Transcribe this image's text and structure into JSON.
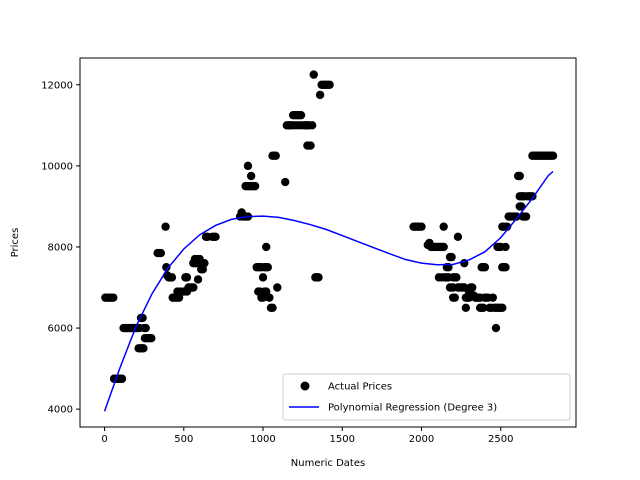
{
  "chart_data": {
    "type": "scatter",
    "title": "",
    "xlabel": "Numeric Dates",
    "ylabel": "Prices",
    "xlim": [
      -155,
      2975
    ],
    "ylim": [
      3560,
      12660
    ],
    "xticks": [
      0,
      500,
      1000,
      1500,
      2000,
      2500
    ],
    "yticks": [
      4000,
      6000,
      8000,
      10000,
      12000
    ],
    "grid": false,
    "legend_placement": "lower-right",
    "legend": [
      {
        "label": "Actual Prices",
        "marker": "circle",
        "color": "#000000"
      },
      {
        "label": "Polynomial Regression (Degree 3)",
        "marker": "line",
        "color": "#0000ff"
      }
    ],
    "series": [
      {
        "name": "Actual Prices",
        "kind": "scatter",
        "color": "#000000",
        "points": [
          [
            5,
            6750
          ],
          [
            15,
            6750
          ],
          [
            25,
            6750
          ],
          [
            35,
            6750
          ],
          [
            45,
            6750
          ],
          [
            55,
            6750
          ],
          [
            60,
            4750
          ],
          [
            70,
            4750
          ],
          [
            80,
            4750
          ],
          [
            90,
            4750
          ],
          [
            100,
            4750
          ],
          [
            110,
            4750
          ],
          [
            120,
            6000
          ],
          [
            130,
            6000
          ],
          [
            140,
            6000
          ],
          [
            150,
            6000
          ],
          [
            160,
            6000
          ],
          [
            170,
            6000
          ],
          [
            180,
            6000
          ],
          [
            190,
            6000
          ],
          [
            200,
            6000
          ],
          [
            210,
            6000
          ],
          [
            220,
            6000
          ],
          [
            215,
            5500
          ],
          [
            225,
            5500
          ],
          [
            235,
            5500
          ],
          [
            245,
            5500
          ],
          [
            230,
            6250
          ],
          [
            240,
            6250
          ],
          [
            250,
            6000
          ],
          [
            260,
            6000
          ],
          [
            255,
            5750
          ],
          [
            265,
            5750
          ],
          [
            275,
            5750
          ],
          [
            285,
            5750
          ],
          [
            295,
            5750
          ],
          [
            335,
            7850
          ],
          [
            345,
            7850
          ],
          [
            355,
            7850
          ],
          [
            385,
            8500
          ],
          [
            390,
            7500
          ],
          [
            395,
            7300
          ],
          [
            405,
            7250
          ],
          [
            415,
            7250
          ],
          [
            425,
            7250
          ],
          [
            430,
            6750
          ],
          [
            440,
            6750
          ],
          [
            450,
            6750
          ],
          [
            460,
            6750
          ],
          [
            470,
            6750
          ],
          [
            460,
            6900
          ],
          [
            480,
            6900
          ],
          [
            500,
            6900
          ],
          [
            520,
            6900
          ],
          [
            510,
            7250
          ],
          [
            520,
            7250
          ],
          [
            530,
            7000
          ],
          [
            540,
            7000
          ],
          [
            550,
            7000
          ],
          [
            560,
            7000
          ],
          [
            560,
            7600
          ],
          [
            570,
            7600
          ],
          [
            580,
            7600
          ],
          [
            590,
            7600
          ],
          [
            600,
            7600
          ],
          [
            610,
            7600
          ],
          [
            570,
            7700
          ],
          [
            590,
            7700
          ],
          [
            600,
            7700
          ],
          [
            590,
            7200
          ],
          [
            610,
            7450
          ],
          [
            620,
            7450
          ],
          [
            625,
            7600
          ],
          [
            630,
            7600
          ],
          [
            640,
            8250
          ],
          [
            650,
            8250
          ],
          [
            680,
            8250
          ],
          [
            690,
            8250
          ],
          [
            700,
            8250
          ],
          [
            855,
            8750
          ],
          [
            865,
            8850
          ],
          [
            875,
            8750
          ],
          [
            885,
            8750
          ],
          [
            895,
            8750
          ],
          [
            905,
            8750
          ],
          [
            890,
            9500
          ],
          [
            900,
            9500
          ],
          [
            910,
            9500
          ],
          [
            920,
            9500
          ],
          [
            930,
            9500
          ],
          [
            940,
            9500
          ],
          [
            950,
            9500
          ],
          [
            905,
            10000
          ],
          [
            925,
            9750
          ],
          [
            960,
            7500
          ],
          [
            970,
            7500
          ],
          [
            980,
            7500
          ],
          [
            990,
            7500
          ],
          [
            970,
            6900
          ],
          [
            980,
            6900
          ],
          [
            990,
            6750
          ],
          [
            1000,
            6750
          ],
          [
            1010,
            6900
          ],
          [
            1020,
            6900
          ],
          [
            1000,
            7250
          ],
          [
            1010,
            7500
          ],
          [
            1020,
            7500
          ],
          [
            1030,
            7500
          ],
          [
            1020,
            8000
          ],
          [
            1040,
            6750
          ],
          [
            1050,
            6500
          ],
          [
            1060,
            6500
          ],
          [
            1060,
            10250
          ],
          [
            1070,
            10250
          ],
          [
            1080,
            10250
          ],
          [
            1090,
            7000
          ],
          [
            1140,
            9600
          ],
          [
            1150,
            11000
          ],
          [
            1160,
            11000
          ],
          [
            1170,
            11000
          ],
          [
            1180,
            11000
          ],
          [
            1190,
            11250
          ],
          [
            1200,
            11250
          ],
          [
            1210,
            11250
          ],
          [
            1220,
            11250
          ],
          [
            1230,
            11250
          ],
          [
            1240,
            11250
          ],
          [
            1200,
            11000
          ],
          [
            1220,
            11000
          ],
          [
            1240,
            11000
          ],
          [
            1260,
            11000
          ],
          [
            1270,
            11000
          ],
          [
            1280,
            11000
          ],
          [
            1290,
            11000
          ],
          [
            1280,
            10500
          ],
          [
            1290,
            10500
          ],
          [
            1300,
            10500
          ],
          [
            1310,
            11000
          ],
          [
            1320,
            12250
          ],
          [
            1330,
            7250
          ],
          [
            1340,
            7250
          ],
          [
            1350,
            7250
          ],
          [
            1360,
            11750
          ],
          [
            1370,
            12000
          ],
          [
            1380,
            12000
          ],
          [
            1390,
            12000
          ],
          [
            1400,
            12000
          ],
          [
            1410,
            12000
          ],
          [
            1420,
            12000
          ],
          [
            1950,
            8500
          ],
          [
            1960,
            8500
          ],
          [
            1970,
            8500
          ],
          [
            1980,
            8500
          ],
          [
            1990,
            8500
          ],
          [
            2000,
            8500
          ],
          [
            2040,
            8050
          ],
          [
            2050,
            8100
          ],
          [
            2060,
            8000
          ],
          [
            2070,
            8000
          ],
          [
            2080,
            8000
          ],
          [
            2090,
            8000
          ],
          [
            2100,
            8000
          ],
          [
            2110,
            8000
          ],
          [
            2120,
            8000
          ],
          [
            2130,
            8000
          ],
          [
            2140,
            8000
          ],
          [
            2110,
            7250
          ],
          [
            2130,
            7250
          ],
          [
            2140,
            8500
          ],
          [
            2150,
            7250
          ],
          [
            2160,
            7250
          ],
          [
            2170,
            7250
          ],
          [
            2160,
            7500
          ],
          [
            2170,
            7500
          ],
          [
            2180,
            7750
          ],
          [
            2190,
            7750
          ],
          [
            2180,
            7000
          ],
          [
            2190,
            7000
          ],
          [
            2200,
            7000
          ],
          [
            2200,
            6750
          ],
          [
            2210,
            6750
          ],
          [
            2200,
            7250
          ],
          [
            2210,
            7250
          ],
          [
            2220,
            7250
          ],
          [
            2230,
            8250
          ],
          [
            2230,
            7000
          ],
          [
            2240,
            7000
          ],
          [
            2250,
            7000
          ],
          [
            2260,
            7000
          ],
          [
            2270,
            7000
          ],
          [
            2270,
            7600
          ],
          [
            2280,
            6500
          ],
          [
            2280,
            6750
          ],
          [
            2290,
            6750
          ],
          [
            2300,
            6750
          ],
          [
            2300,
            6900
          ],
          [
            2310,
            7000
          ],
          [
            2320,
            7000
          ],
          [
            2330,
            6800
          ],
          [
            2340,
            6750
          ],
          [
            2350,
            6750
          ],
          [
            2360,
            6750
          ],
          [
            2370,
            6750
          ],
          [
            2380,
            7500
          ],
          [
            2390,
            7500
          ],
          [
            2400,
            7500
          ],
          [
            2370,
            6500
          ],
          [
            2380,
            6500
          ],
          [
            2390,
            6500
          ],
          [
            2400,
            6750
          ],
          [
            2410,
            6750
          ],
          [
            2420,
            6750
          ],
          [
            2430,
            6500
          ],
          [
            2440,
            6500
          ],
          [
            2450,
            6750
          ],
          [
            2460,
            6500
          ],
          [
            2470,
            6500
          ],
          [
            2480,
            6500
          ],
          [
            2490,
            6500
          ],
          [
            2500,
            6500
          ],
          [
            2510,
            6500
          ],
          [
            2470,
            6000
          ],
          [
            2480,
            8000
          ],
          [
            2490,
            8000
          ],
          [
            2500,
            8000
          ],
          [
            2510,
            7500
          ],
          [
            2520,
            7500
          ],
          [
            2530,
            7500
          ],
          [
            2510,
            8500
          ],
          [
            2520,
            8500
          ],
          [
            2530,
            8000
          ],
          [
            2540,
            8500
          ],
          [
            2550,
            8750
          ],
          [
            2560,
            8750
          ],
          [
            2570,
            8750
          ],
          [
            2580,
            8750
          ],
          [
            2590,
            8750
          ],
          [
            2600,
            8750
          ],
          [
            2610,
            9750
          ],
          [
            2620,
            9750
          ],
          [
            2620,
            9250
          ],
          [
            2630,
            9250
          ],
          [
            2640,
            9250
          ],
          [
            2650,
            9250
          ],
          [
            2620,
            9000
          ],
          [
            2630,
            9000
          ],
          [
            2640,
            8750
          ],
          [
            2650,
            8750
          ],
          [
            2660,
            8750
          ],
          [
            2670,
            9250
          ],
          [
            2680,
            9250
          ],
          [
            2690,
            9250
          ],
          [
            2700,
            9250
          ],
          [
            2700,
            10250
          ],
          [
            2710,
            10250
          ],
          [
            2720,
            10250
          ],
          [
            2730,
            10250
          ],
          [
            2740,
            10250
          ],
          [
            2750,
            10250
          ],
          [
            2760,
            10250
          ],
          [
            2770,
            10250
          ],
          [
            2780,
            10250
          ],
          [
            2790,
            10250
          ],
          [
            2800,
            10250
          ],
          [
            2810,
            10250
          ],
          [
            2820,
            10250
          ],
          [
            2830,
            10250
          ]
        ]
      },
      {
        "name": "Polynomial Regression (Degree 3)",
        "kind": "line",
        "color": "#0000ff",
        "points": [
          [
            0,
            3950
          ],
          [
            100,
            5050
          ],
          [
            200,
            6050
          ],
          [
            300,
            6850
          ],
          [
            400,
            7480
          ],
          [
            500,
            7950
          ],
          [
            600,
            8300
          ],
          [
            700,
            8530
          ],
          [
            800,
            8680
          ],
          [
            900,
            8750
          ],
          [
            1000,
            8760
          ],
          [
            1100,
            8730
          ],
          [
            1200,
            8650
          ],
          [
            1300,
            8550
          ],
          [
            1400,
            8430
          ],
          [
            1500,
            8280
          ],
          [
            1600,
            8130
          ],
          [
            1700,
            7980
          ],
          [
            1800,
            7830
          ],
          [
            1900,
            7690
          ],
          [
            2000,
            7600
          ],
          [
            2100,
            7560
          ],
          [
            2200,
            7570
          ],
          [
            2300,
            7680
          ],
          [
            2400,
            7880
          ],
          [
            2500,
            8230
          ],
          [
            2600,
            8700
          ],
          [
            2700,
            9200
          ],
          [
            2800,
            9760
          ],
          [
            2830,
            9860
          ]
        ]
      }
    ]
  }
}
